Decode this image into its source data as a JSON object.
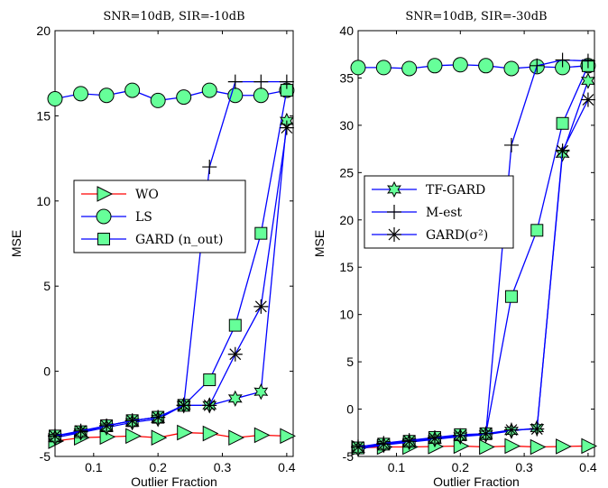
{
  "chart_data": [
    {
      "type": "line",
      "title": "SNR=10dB, SIR=-10dB",
      "xlabel": "Outlier Fraction",
      "ylabel": "MSE",
      "xlim": [
        0.04,
        0.41
      ],
      "ylim": [
        -5,
        20
      ],
      "xticks": [
        0.1,
        0.2,
        0.3,
        0.4
      ],
      "yticks": [
        -5,
        0,
        5,
        10,
        15,
        20
      ],
      "x": [
        0.04,
        0.08,
        0.12,
        0.16,
        0.2,
        0.24,
        0.28,
        0.32,
        0.36,
        0.4
      ],
      "legend_position": "center-right",
      "legend_entries": [
        "WO",
        "LS",
        "GARD (n_out)"
      ],
      "series": [
        {
          "name": "WO",
          "marker": "triangle-right",
          "color": "#ff0000",
          "values": [
            -4.1,
            -3.9,
            -3.85,
            -3.8,
            -3.9,
            -3.6,
            -3.65,
            -3.9,
            -3.75,
            -3.8
          ]
        },
        {
          "name": "LS",
          "marker": "circle",
          "color": "#0000ff",
          "values": [
            16.0,
            16.3,
            16.2,
            16.5,
            15.9,
            16.1,
            16.5,
            16.2,
            16.2,
            16.5
          ]
        },
        {
          "name": "GARD (n_out)",
          "marker": "square",
          "color": "#0000ff",
          "values": [
            -3.8,
            -3.55,
            -3.2,
            -2.9,
            -2.7,
            -2.0,
            -0.5,
            2.7,
            8.1,
            16.5
          ]
        },
        {
          "name": "",
          "marker": "star6",
          "color": "#0000ff",
          "values": [
            -3.9,
            -3.6,
            -3.3,
            -3.0,
            -2.8,
            -2.0,
            -2.0,
            -1.6,
            -1.2,
            14.7
          ]
        },
        {
          "name": "",
          "marker": "plus",
          "color": "#0000ff",
          "values": [
            -3.8,
            -3.55,
            -3.2,
            -2.9,
            -2.7,
            -2.0,
            12.0,
            17.0,
            17.0,
            17.0
          ]
        },
        {
          "name": "",
          "marker": "asterisk",
          "color": "#0000ff",
          "values": [
            -3.8,
            -3.5,
            -3.2,
            -2.9,
            -2.7,
            -2.0,
            -2.0,
            1.0,
            3.8,
            14.3
          ]
        }
      ]
    },
    {
      "type": "line",
      "title": "SNR=10dB, SIR=-30dB",
      "xlabel": "Outlier Fraction",
      "ylabel": "MSE",
      "xlim": [
        0.04,
        0.41
      ],
      "ylim": [
        -5,
        40
      ],
      "xticks": [
        0.1,
        0.2,
        0.3,
        0.4
      ],
      "yticks": [
        -5,
        0,
        5,
        10,
        15,
        20,
        25,
        30,
        35,
        40
      ],
      "x": [
        0.04,
        0.08,
        0.12,
        0.16,
        0.2,
        0.24,
        0.28,
        0.32,
        0.36,
        0.4
      ],
      "legend_position": "upper-left",
      "legend_entries": [
        "TF-GARD",
        "M-est",
        "GARD(σ²)"
      ],
      "series": [
        {
          "name": "",
          "marker": "triangle-right",
          "color": "#ff0000",
          "values": [
            -4.1,
            -4.0,
            -4.0,
            -3.95,
            -3.9,
            -4.0,
            -3.9,
            -4.0,
            -3.95,
            -3.9
          ]
        },
        {
          "name": "",
          "marker": "circle",
          "color": "#0000ff",
          "values": [
            36.1,
            36.1,
            36.0,
            36.3,
            36.4,
            36.3,
            36.0,
            36.2,
            36.1,
            36.3
          ]
        },
        {
          "name": "",
          "marker": "square",
          "color": "#0000ff",
          "values": [
            -4.1,
            -3.7,
            -3.4,
            -3.0,
            -2.7,
            -2.6,
            11.9,
            18.9,
            30.2,
            36.3
          ]
        },
        {
          "name": "TF-GARD",
          "marker": "star6",
          "color": "#0000ff",
          "values": [
            -4.2,
            -3.8,
            -3.5,
            -3.2,
            -2.9,
            -2.7,
            -2.3,
            -2.0,
            27.0,
            34.7
          ]
        },
        {
          "name": "M-est",
          "marker": "plus",
          "color": "#0000ff",
          "values": [
            -4.0,
            -3.6,
            -3.3,
            -3.0,
            -2.8,
            -2.6,
            27.9,
            36.3,
            36.9,
            36.8
          ]
        },
        {
          "name": "GARD(σ²)",
          "marker": "asterisk",
          "color": "#0000ff",
          "values": [
            -4.0,
            -3.7,
            -3.4,
            -3.1,
            -2.8,
            -2.6,
            -2.2,
            -2.1,
            27.3,
            32.7
          ]
        }
      ]
    }
  ]
}
